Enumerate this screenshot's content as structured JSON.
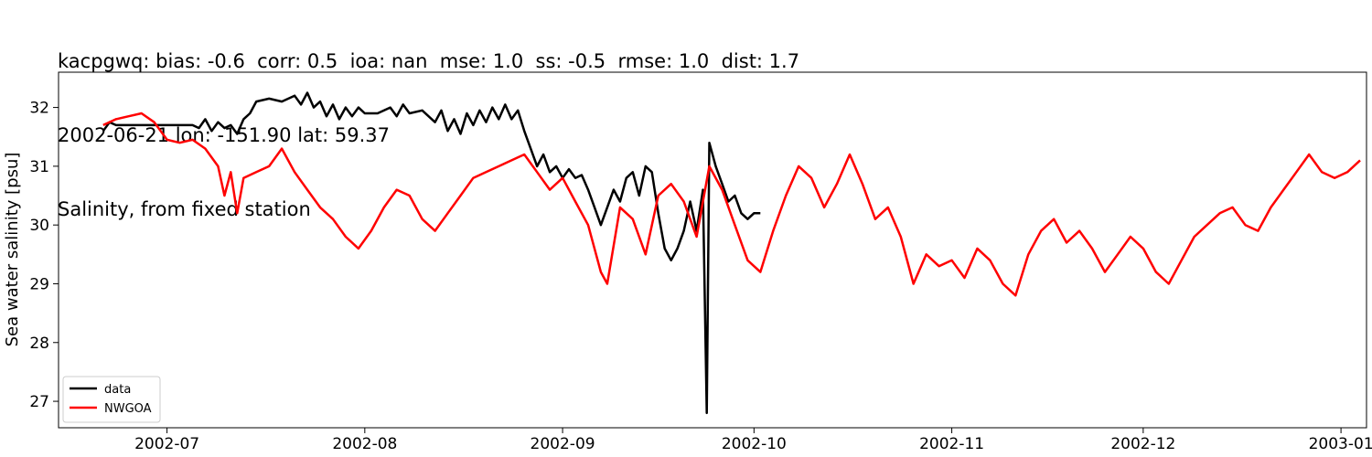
{
  "chart_data": {
    "type": "line",
    "title_lines": [
      "kacpgwq: bias: -0.6  corr: 0.5  ioa: nan  mse: 1.0  ss: -0.5  rmse: 1.0  dist: 1.7",
      "2002-06-21 lon: -151.90 lat: 59.37",
      "Salinity, from fixed station"
    ],
    "xlabel": "",
    "ylabel": "Sea water salinity [psu]",
    "xlim": [
      "2002-06-14",
      "2003-01-05"
    ],
    "ylim": [
      26.55,
      32.6
    ],
    "x_ticks": [
      "2002-07",
      "2002-08",
      "2002-09",
      "2002-10",
      "2002-11",
      "2002-12",
      "2003-01"
    ],
    "y_ticks": [
      27,
      28,
      29,
      30,
      31,
      32
    ],
    "grid": false,
    "legend": {
      "position": "lower-left",
      "entries": [
        "data",
        "NWGOA"
      ]
    },
    "series": [
      {
        "name": "data",
        "color": "#000000",
        "points": [
          [
            "2002-06-21",
            31.6
          ],
          [
            "2002-06-22",
            31.75
          ],
          [
            "2002-06-23",
            31.7
          ],
          [
            "2002-06-25",
            31.7
          ],
          [
            "2002-06-27",
            31.7
          ],
          [
            "2002-06-30",
            31.7
          ],
          [
            "2002-07-03",
            31.7
          ],
          [
            "2002-07-05",
            31.7
          ],
          [
            "2002-07-06",
            31.65
          ],
          [
            "2002-07-07",
            31.8
          ],
          [
            "2002-07-08",
            31.6
          ],
          [
            "2002-07-09",
            31.75
          ],
          [
            "2002-07-10",
            31.65
          ],
          [
            "2002-07-11",
            31.7
          ],
          [
            "2002-07-12",
            31.55
          ],
          [
            "2002-07-13",
            31.8
          ],
          [
            "2002-07-14",
            31.9
          ],
          [
            "2002-07-15",
            32.1
          ],
          [
            "2002-07-17",
            32.15
          ],
          [
            "2002-07-19",
            32.1
          ],
          [
            "2002-07-21",
            32.2
          ],
          [
            "2002-07-22",
            32.05
          ],
          [
            "2002-07-23",
            32.25
          ],
          [
            "2002-07-24",
            32.0
          ],
          [
            "2002-07-25",
            32.1
          ],
          [
            "2002-07-26",
            31.85
          ],
          [
            "2002-07-27",
            32.05
          ],
          [
            "2002-07-28",
            31.8
          ],
          [
            "2002-07-29",
            32.0
          ],
          [
            "2002-07-30",
            31.85
          ],
          [
            "2002-07-31",
            32.0
          ],
          [
            "2002-08-01",
            31.9
          ],
          [
            "2002-08-03",
            31.9
          ],
          [
            "2002-08-05",
            32.0
          ],
          [
            "2002-08-06",
            31.85
          ],
          [
            "2002-08-07",
            32.05
          ],
          [
            "2002-08-08",
            31.9
          ],
          [
            "2002-08-10",
            31.95
          ],
          [
            "2002-08-12",
            31.75
          ],
          [
            "2002-08-13",
            31.95
          ],
          [
            "2002-08-14",
            31.6
          ],
          [
            "2002-08-15",
            31.8
          ],
          [
            "2002-08-16",
            31.55
          ],
          [
            "2002-08-17",
            31.9
          ],
          [
            "2002-08-18",
            31.7
          ],
          [
            "2002-08-19",
            31.95
          ],
          [
            "2002-08-20",
            31.75
          ],
          [
            "2002-08-21",
            32.0
          ],
          [
            "2002-08-22",
            31.8
          ],
          [
            "2002-08-23",
            32.05
          ],
          [
            "2002-08-24",
            31.8
          ],
          [
            "2002-08-25",
            31.95
          ],
          [
            "2002-08-26",
            31.6
          ],
          [
            "2002-08-27",
            31.3
          ],
          [
            "2002-08-28",
            31.0
          ],
          [
            "2002-08-29",
            31.2
          ],
          [
            "2002-08-30",
            30.9
          ],
          [
            "2002-08-31",
            31.0
          ],
          [
            "2002-09-01",
            30.8
          ],
          [
            "2002-09-02",
            30.95
          ],
          [
            "2002-09-03",
            30.8
          ],
          [
            "2002-09-04",
            30.85
          ],
          [
            "2002-09-05",
            30.6
          ],
          [
            "2002-09-06",
            30.3
          ],
          [
            "2002-09-07",
            30.0
          ],
          [
            "2002-09-08",
            30.3
          ],
          [
            "2002-09-09",
            30.6
          ],
          [
            "2002-09-10",
            30.4
          ],
          [
            "2002-09-11",
            30.8
          ],
          [
            "2002-09-12",
            30.9
          ],
          [
            "2002-09-13",
            30.5
          ],
          [
            "2002-09-14",
            31.0
          ],
          [
            "2002-09-15",
            30.9
          ],
          [
            "2002-09-16",
            30.2
          ],
          [
            "2002-09-17",
            29.6
          ],
          [
            "2002-09-18",
            29.4
          ],
          [
            "2002-09-19",
            29.6
          ],
          [
            "2002-09-20",
            29.9
          ],
          [
            "2002-09-21",
            30.4
          ],
          [
            "2002-09-22",
            29.9
          ],
          [
            "2002-09-23",
            30.6
          ],
          [
            "2002-09-23.6",
            26.8
          ],
          [
            "2002-09-24",
            31.4
          ],
          [
            "2002-09-25",
            31.0
          ],
          [
            "2002-09-26",
            30.7
          ],
          [
            "2002-09-27",
            30.4
          ],
          [
            "2002-09-28",
            30.5
          ],
          [
            "2002-09-29",
            30.2
          ],
          [
            "2002-09-30",
            30.1
          ],
          [
            "2002-10-01",
            30.2
          ],
          [
            "2002-10-02",
            30.2
          ]
        ]
      },
      {
        "name": "NWGOA",
        "color": "#ff0000",
        "points": [
          [
            "2002-06-21",
            31.7
          ],
          [
            "2002-06-23",
            31.8
          ],
          [
            "2002-06-25",
            31.85
          ],
          [
            "2002-06-27",
            31.9
          ],
          [
            "2002-06-29",
            31.75
          ],
          [
            "2002-07-01",
            31.45
          ],
          [
            "2002-07-03",
            31.4
          ],
          [
            "2002-07-05",
            31.45
          ],
          [
            "2002-07-07",
            31.3
          ],
          [
            "2002-07-09",
            31.0
          ],
          [
            "2002-07-10",
            30.5
          ],
          [
            "2002-07-11",
            30.9
          ],
          [
            "2002-07-12",
            30.2
          ],
          [
            "2002-07-13",
            30.8
          ],
          [
            "2002-07-15",
            30.9
          ],
          [
            "2002-07-17",
            31.0
          ],
          [
            "2002-07-19",
            31.3
          ],
          [
            "2002-07-21",
            30.9
          ],
          [
            "2002-07-23",
            30.6
          ],
          [
            "2002-07-25",
            30.3
          ],
          [
            "2002-07-27",
            30.1
          ],
          [
            "2002-07-29",
            29.8
          ],
          [
            "2002-07-31",
            29.6
          ],
          [
            "2002-08-02",
            29.9
          ],
          [
            "2002-08-04",
            30.3
          ],
          [
            "2002-08-06",
            30.6
          ],
          [
            "2002-08-08",
            30.5
          ],
          [
            "2002-08-10",
            30.1
          ],
          [
            "2002-08-12",
            29.9
          ],
          [
            "2002-08-14",
            30.2
          ],
          [
            "2002-08-16",
            30.5
          ],
          [
            "2002-08-18",
            30.8
          ],
          [
            "2002-08-20",
            30.9
          ],
          [
            "2002-08-22",
            31.0
          ],
          [
            "2002-08-24",
            31.1
          ],
          [
            "2002-08-26",
            31.2
          ],
          [
            "2002-08-28",
            30.9
          ],
          [
            "2002-08-30",
            30.6
          ],
          [
            "2002-09-01",
            30.8
          ],
          [
            "2002-09-03",
            30.4
          ],
          [
            "2002-09-05",
            30.0
          ],
          [
            "2002-09-07",
            29.2
          ],
          [
            "2002-09-08",
            29.0
          ],
          [
            "2002-09-10",
            30.3
          ],
          [
            "2002-09-12",
            30.1
          ],
          [
            "2002-09-14",
            29.5
          ],
          [
            "2002-09-16",
            30.5
          ],
          [
            "2002-09-18",
            30.7
          ],
          [
            "2002-09-20",
            30.4
          ],
          [
            "2002-09-22",
            29.8
          ],
          [
            "2002-09-24",
            31.0
          ],
          [
            "2002-09-26",
            30.6
          ],
          [
            "2002-09-28",
            30.0
          ],
          [
            "2002-09-30",
            29.4
          ],
          [
            "2002-10-02",
            29.2
          ],
          [
            "2002-10-04",
            29.9
          ],
          [
            "2002-10-06",
            30.5
          ],
          [
            "2002-10-08",
            31.0
          ],
          [
            "2002-10-10",
            30.8
          ],
          [
            "2002-10-12",
            30.3
          ],
          [
            "2002-10-14",
            30.7
          ],
          [
            "2002-10-16",
            31.2
          ],
          [
            "2002-10-18",
            30.7
          ],
          [
            "2002-10-20",
            30.1
          ],
          [
            "2002-10-22",
            30.3
          ],
          [
            "2002-10-24",
            29.8
          ],
          [
            "2002-10-26",
            29.0
          ],
          [
            "2002-10-28",
            29.5
          ],
          [
            "2002-10-30",
            29.3
          ],
          [
            "2002-11-01",
            29.4
          ],
          [
            "2002-11-03",
            29.1
          ],
          [
            "2002-11-05",
            29.6
          ],
          [
            "2002-11-07",
            29.4
          ],
          [
            "2002-11-09",
            29.0
          ],
          [
            "2002-11-11",
            28.8
          ],
          [
            "2002-11-13",
            29.5
          ],
          [
            "2002-11-15",
            29.9
          ],
          [
            "2002-11-17",
            30.1
          ],
          [
            "2002-11-19",
            29.7
          ],
          [
            "2002-11-21",
            29.9
          ],
          [
            "2002-11-23",
            29.6
          ],
          [
            "2002-11-25",
            29.2
          ],
          [
            "2002-11-27",
            29.5
          ],
          [
            "2002-11-29",
            29.8
          ],
          [
            "2002-12-01",
            29.6
          ],
          [
            "2002-12-03",
            29.2
          ],
          [
            "2002-12-05",
            29.0
          ],
          [
            "2002-12-07",
            29.4
          ],
          [
            "2002-12-09",
            29.8
          ],
          [
            "2002-12-11",
            30.0
          ],
          [
            "2002-12-13",
            30.2
          ],
          [
            "2002-12-15",
            30.3
          ],
          [
            "2002-12-17",
            30.0
          ],
          [
            "2002-12-19",
            29.9
          ],
          [
            "2002-12-21",
            30.3
          ],
          [
            "2002-12-23",
            30.6
          ],
          [
            "2002-12-25",
            30.9
          ],
          [
            "2002-12-27",
            31.2
          ],
          [
            "2002-12-29",
            30.9
          ],
          [
            "2002-12-31",
            30.8
          ],
          [
            "2003-01-02",
            30.9
          ],
          [
            "2003-01-04",
            31.1
          ]
        ]
      }
    ]
  }
}
